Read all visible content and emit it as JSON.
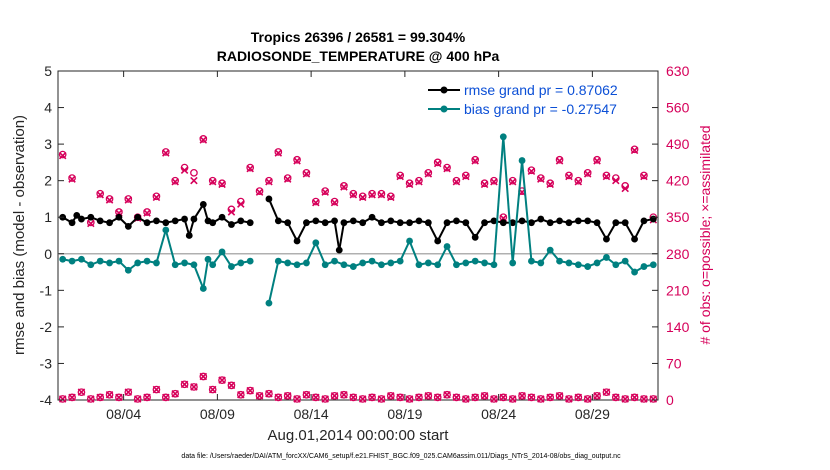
{
  "chart_data": {
    "type": "line",
    "title_line1": "Tropics 26396 / 26581 = 99.304%",
    "title_line2": "RADIOSONDE_TEMPERATURE @ 400 hPa",
    "xlabel": "Aug.01,2014 00:00:00 start",
    "ylabel_left": "rmse and bias (model - observation)",
    "ylabel_right": "# of obs: o=possible; ×=assimilated",
    "footer": "data file: /Users/raeder/DAI/ATM_forcXX/CAM6_setup/f.e21.FHIST_BGC.f09_025.CAM6assim.011/Diags_NTrS_2014-08/obs_diag_output.nc",
    "xlim": [
      0,
      32
    ],
    "ylim_left": [
      -4,
      5
    ],
    "ylim_right": [
      0,
      630
    ],
    "x_ticks": [
      3.5,
      8.5,
      13.5,
      18.5,
      23.5,
      28.5
    ],
    "x_tick_labels": [
      "08/04",
      "08/09",
      "08/14",
      "08/19",
      "08/24",
      "08/29"
    ],
    "y_ticks_left": [
      -4,
      -3,
      -2,
      -1,
      0,
      1,
      2,
      3,
      4,
      5
    ],
    "y_tick_labels_left": [
      "-4",
      "-3",
      "-2",
      "-1",
      "0",
      "1",
      "2",
      "3",
      "4",
      "5"
    ],
    "y_ticks_right": [
      0,
      70,
      140,
      210,
      280,
      350,
      420,
      490,
      560,
      630
    ],
    "y_tick_labels_right": [
      "0",
      "70",
      "140",
      "210",
      "280",
      "350",
      "420",
      "490",
      "560",
      "630"
    ],
    "zero_line": 0,
    "legend_position": "top-right",
    "colors": {
      "rmse": "#000000",
      "bias": "#008080",
      "obs": "#d6005a",
      "legend_text": "#0b4fd6",
      "zero_line": "#b0b0b0",
      "axis": "#262626"
    },
    "series": [
      {
        "name": "rmse grand pr = 0.87062",
        "key": "rmse",
        "x": [
          0.25,
          0.75,
          1.0,
          1.25,
          1.75,
          2.25,
          2.75,
          3.25,
          3.75,
          4.25,
          4.75,
          5.25,
          5.75,
          6.25,
          6.75,
          7.0,
          7.25,
          7.75,
          8.0,
          8.25,
          8.75,
          9.25,
          9.75,
          10.25,
          11.25,
          11.75,
          12.25,
          12.75,
          13.25,
          13.75,
          14.25,
          14.75,
          15.0,
          15.25,
          15.75,
          16.25,
          16.75,
          17.25,
          17.75,
          18.25,
          18.75,
          19.25,
          19.75,
          20.25,
          20.75,
          21.25,
          21.75,
          22.25,
          22.75,
          23.25,
          23.75,
          24.25,
          24.75,
          25.25,
          25.75,
          26.25,
          26.75,
          27.25,
          27.75,
          28.25,
          28.75,
          29.25,
          29.75,
          30.25,
          30.75,
          31.25,
          31.75
        ],
        "values": [
          1.0,
          0.85,
          1.05,
          0.95,
          1.0,
          0.9,
          0.85,
          1.0,
          0.75,
          1.0,
          0.85,
          0.9,
          0.85,
          0.9,
          0.95,
          0.5,
          0.95,
          1.35,
          0.9,
          0.85,
          1.0,
          0.8,
          0.9,
          0.85,
          1.5,
          0.9,
          0.85,
          0.35,
          0.85,
          0.9,
          0.85,
          0.9,
          0.1,
          0.85,
          0.9,
          0.85,
          1.0,
          0.85,
          0.9,
          0.85,
          0.85,
          0.9,
          0.85,
          0.35,
          0.85,
          0.9,
          0.85,
          0.45,
          0.85,
          0.9,
          0.85,
          0.85,
          0.9,
          0.85,
          0.95,
          0.85,
          0.9,
          0.85,
          0.9,
          0.9,
          0.85,
          0.4,
          0.85,
          0.85,
          0.4,
          0.9,
          0.95
        ],
        "marker": "filled-circle"
      },
      {
        "name": "bias grand pr = -0.27547",
        "key": "bias",
        "x": [
          0.25,
          0.75,
          1.25,
          1.75,
          2.25,
          2.75,
          3.25,
          3.75,
          4.25,
          4.75,
          5.25,
          5.75,
          6.25,
          6.75,
          7.25,
          7.75,
          8.0,
          8.25,
          8.75,
          9.25,
          9.75,
          10.25,
          11.25,
          11.75,
          12.25,
          12.75,
          13.25,
          13.75,
          14.25,
          14.75,
          15.25,
          15.75,
          16.25,
          16.75,
          17.25,
          17.75,
          18.25,
          18.75,
          19.25,
          19.75,
          20.25,
          20.75,
          21.25,
          21.75,
          22.25,
          22.75,
          23.25,
          23.75,
          24.25,
          24.75,
          25.25,
          25.75,
          26.25,
          26.75,
          27.25,
          27.75,
          28.25,
          28.75,
          29.25,
          29.75,
          30.25,
          30.75,
          31.25,
          31.75
        ],
        "values": [
          -0.15,
          -0.2,
          -0.15,
          -0.3,
          -0.2,
          -0.25,
          -0.2,
          -0.45,
          -0.25,
          -0.2,
          -0.25,
          0.65,
          -0.3,
          -0.25,
          -0.3,
          -0.95,
          -0.15,
          -0.3,
          0.05,
          -0.35,
          -0.25,
          -0.2,
          -1.35,
          -0.2,
          -0.25,
          -0.3,
          -0.25,
          0.3,
          -0.3,
          -0.2,
          -0.3,
          -0.35,
          -0.25,
          -0.2,
          -0.3,
          -0.25,
          -0.2,
          0.35,
          -0.3,
          -0.25,
          -0.3,
          0.2,
          -0.3,
          -0.25,
          -0.2,
          -0.25,
          -0.3,
          3.2,
          -0.25,
          2.55,
          -0.2,
          -0.25,
          0.1,
          -0.2,
          -0.25,
          -0.3,
          -0.35,
          -0.25,
          -0.1,
          -0.3,
          -0.2,
          -0.5,
          -0.35,
          -0.3
        ],
        "marker": "filled-circle"
      },
      {
        "name": "obs possible",
        "key": "obs_possible",
        "x": [
          0.25,
          0.75,
          1.75,
          2.25,
          2.75,
          3.25,
          3.75,
          4.25,
          4.75,
          5.25,
          5.75,
          6.25,
          6.75,
          7.25,
          7.75,
          8.25,
          8.75,
          9.25,
          9.75,
          10.25,
          10.75,
          11.25,
          11.75,
          12.25,
          12.75,
          13.25,
          13.75,
          14.25,
          14.75,
          15.25,
          15.75,
          16.25,
          16.75,
          17.25,
          17.75,
          18.25,
          18.75,
          19.25,
          19.75,
          20.25,
          20.75,
          21.25,
          21.75,
          22.25,
          22.75,
          23.25,
          23.75,
          24.25,
          24.75,
          25.25,
          25.75,
          26.25,
          26.75,
          27.25,
          27.75,
          28.25,
          28.75,
          29.25,
          29.75,
          30.25,
          30.75,
          31.25,
          31.75
        ],
        "values": [
          470,
          425,
          340,
          395,
          385,
          360,
          385,
          350,
          360,
          390,
          475,
          420,
          445,
          435,
          500,
          420,
          415,
          365,
          380,
          445,
          400,
          420,
          475,
          425,
          460,
          435,
          380,
          400,
          380,
          410,
          395,
          390,
          395,
          395,
          390,
          430,
          415,
          420,
          435,
          455,
          445,
          420,
          430,
          460,
          415,
          420,
          350,
          420,
          400,
          440,
          425,
          415,
          460,
          430,
          420,
          435,
          460,
          430,
          425,
          410,
          480,
          430,
          350
        ],
        "marker": "open-circle"
      },
      {
        "name": "obs assimilated",
        "key": "obs_assimilated",
        "x": [
          0.25,
          0.75,
          1.75,
          2.25,
          2.75,
          3.25,
          3.75,
          4.25,
          4.75,
          5.25,
          5.75,
          6.25,
          6.75,
          7.25,
          7.75,
          8.25,
          8.75,
          9.25,
          9.75,
          10.25,
          10.75,
          11.25,
          11.75,
          12.25,
          12.75,
          13.25,
          13.75,
          14.25,
          14.75,
          15.25,
          15.75,
          16.25,
          16.75,
          17.25,
          17.75,
          18.25,
          18.75,
          19.25,
          19.75,
          20.25,
          20.75,
          21.25,
          21.75,
          22.25,
          22.75,
          23.25,
          23.75,
          24.25,
          24.75,
          25.25,
          25.75,
          26.25,
          26.75,
          27.25,
          27.75,
          28.25,
          28.75,
          29.25,
          29.75,
          30.25,
          30.75,
          31.25,
          31.75
        ],
        "values": [
          468,
          423,
          338,
          393,
          383,
          358,
          383,
          348,
          358,
          388,
          473,
          418,
          440,
          420,
          498,
          418,
          413,
          360,
          375,
          443,
          398,
          418,
          473,
          423,
          458,
          433,
          378,
          398,
          378,
          408,
          393,
          388,
          393,
          393,
          388,
          428,
          413,
          418,
          433,
          453,
          443,
          418,
          428,
          458,
          413,
          418,
          348,
          418,
          398,
          438,
          423,
          413,
          458,
          428,
          418,
          433,
          458,
          428,
          420,
          405,
          478,
          428,
          345
        ],
        "marker": "x"
      },
      {
        "name": "obs low possible",
        "key": "obs_low_possible",
        "x": [
          0.25,
          0.75,
          1.25,
          1.75,
          2.25,
          2.75,
          3.25,
          3.75,
          4.25,
          4.75,
          5.25,
          5.75,
          6.25,
          6.75,
          7.25,
          7.75,
          8.25,
          8.75,
          9.25,
          9.75,
          10.25,
          10.75,
          11.25,
          11.75,
          12.25,
          12.75,
          13.25,
          13.75,
          14.25,
          14.75,
          15.25,
          15.75,
          16.25,
          16.75,
          17.25,
          17.75,
          18.25,
          18.75,
          19.25,
          19.75,
          20.25,
          20.75,
          21.25,
          21.75,
          22.25,
          22.75,
          23.25,
          23.75,
          24.25,
          24.75,
          25.25,
          25.75,
          26.25,
          26.75,
          27.25,
          27.75,
          28.25,
          28.75,
          29.25,
          29.75,
          30.25,
          30.75,
          31.25,
          31.75
        ],
        "values": [
          2,
          5,
          15,
          2,
          5,
          10,
          5,
          15,
          2,
          5,
          20,
          5,
          12,
          30,
          25,
          45,
          20,
          38,
          28,
          10,
          18,
          8,
          12,
          5,
          8,
          2,
          10,
          5,
          2,
          8,
          10,
          5,
          2,
          5,
          2,
          8,
          5,
          2,
          5,
          8,
          5,
          10,
          5,
          2,
          5,
          8,
          2,
          5,
          2,
          8,
          5,
          2,
          5,
          8,
          2,
          5,
          2,
          8,
          15,
          5,
          2,
          5,
          2,
          2
        ],
        "marker": "open-circle"
      },
      {
        "name": "obs low assimilated",
        "key": "obs_low_assimilated",
        "x": [
          0.25,
          0.75,
          1.25,
          1.75,
          2.25,
          2.75,
          3.25,
          3.75,
          4.25,
          4.75,
          5.25,
          5.75,
          6.25,
          6.75,
          7.25,
          7.75,
          8.25,
          8.75,
          9.25,
          9.75,
          10.25,
          10.75,
          11.25,
          11.75,
          12.25,
          12.75,
          13.25,
          13.75,
          14.25,
          14.75,
          15.25,
          15.75,
          16.25,
          16.75,
          17.25,
          17.75,
          18.25,
          18.75,
          19.25,
          19.75,
          20.25,
          20.75,
          21.25,
          21.75,
          22.25,
          22.75,
          23.25,
          23.75,
          24.25,
          24.75,
          25.25,
          25.75,
          26.25,
          26.75,
          27.25,
          27.75,
          28.25,
          28.75,
          29.25,
          29.75,
          30.25,
          30.75,
          31.25,
          31.75
        ],
        "values": [
          2,
          5,
          15,
          2,
          5,
          10,
          5,
          15,
          2,
          5,
          20,
          5,
          12,
          30,
          25,
          45,
          20,
          38,
          28,
          10,
          18,
          8,
          12,
          5,
          8,
          2,
          10,
          5,
          2,
          8,
          10,
          5,
          2,
          5,
          2,
          8,
          5,
          2,
          5,
          8,
          5,
          10,
          5,
          2,
          5,
          8,
          2,
          5,
          2,
          8,
          5,
          2,
          5,
          8,
          2,
          5,
          2,
          8,
          15,
          5,
          2,
          5,
          2,
          2
        ],
        "marker": "x"
      }
    ]
  }
}
